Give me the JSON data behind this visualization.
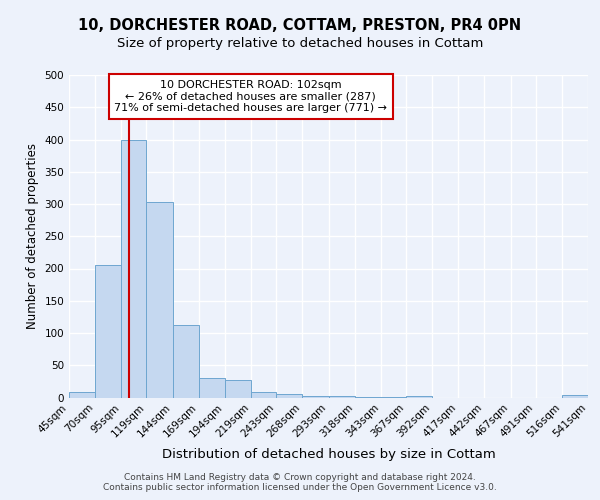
{
  "title1": "10, DORCHESTER ROAD, COTTAM, PRESTON, PR4 0PN",
  "title2": "Size of property relative to detached houses in Cottam",
  "xlabel": "Distribution of detached houses by size in Cottam",
  "ylabel": "Number of detached properties",
  "bin_edges": [
    45,
    70,
    95,
    119,
    144,
    169,
    194,
    219,
    243,
    268,
    293,
    318,
    343,
    367,
    392,
    417,
    442,
    467,
    491,
    516,
    541
  ],
  "bar_heights": [
    8,
    205,
    400,
    303,
    112,
    30,
    27,
    9,
    6,
    3,
    2,
    1,
    1,
    3,
    0,
    0,
    0,
    0,
    0,
    4
  ],
  "bar_color": "#c5d8f0",
  "bar_edge_color": "#6ea6d0",
  "property_line_x": 102,
  "property_line_color": "#cc0000",
  "annotation_line1": "10 DORCHESTER ROAD: 102sqm",
  "annotation_line2": "← 26% of detached houses are smaller (287)",
  "annotation_line3": "71% of semi-detached houses are larger (771) →",
  "annotation_box_color": "white",
  "annotation_box_edge_color": "#cc0000",
  "ylim": [
    0,
    500
  ],
  "yticks": [
    0,
    50,
    100,
    150,
    200,
    250,
    300,
    350,
    400,
    450,
    500
  ],
  "background_color": "#edf2fb",
  "grid_color": "white",
  "footer_text": "Contains HM Land Registry data © Crown copyright and database right 2024.\nContains public sector information licensed under the Open Government Licence v3.0.",
  "title1_fontsize": 10.5,
  "title2_fontsize": 9.5,
  "xlabel_fontsize": 9.5,
  "ylabel_fontsize": 8.5,
  "tick_fontsize": 7.5,
  "annotation_fontsize": 8,
  "footer_fontsize": 6.5
}
